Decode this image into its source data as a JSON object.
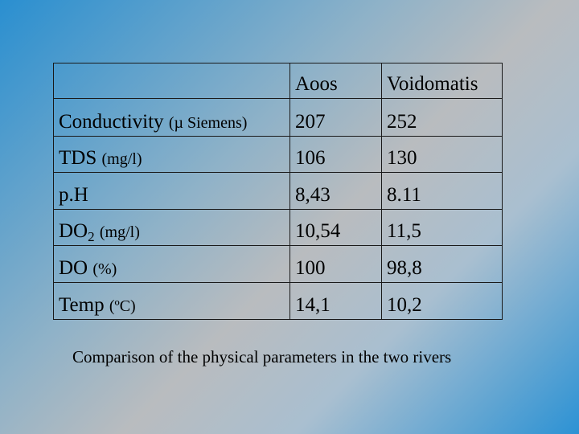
{
  "table": {
    "headers": [
      "",
      "Aoos",
      "Voidomatis"
    ],
    "rows": [
      {
        "name": "Conductivity",
        "sub": "",
        "unit": "(µ Siemens)",
        "aoos": "207",
        "voidomatis": "252"
      },
      {
        "name": "TDS",
        "sub": "",
        "unit": "(mg/l)",
        "aoos": "106",
        "voidomatis": "130"
      },
      {
        "name": "p.H",
        "sub": "",
        "unit": "",
        "aoos": "8,43",
        "voidomatis": "8.11"
      },
      {
        "name": "DO",
        "sub": "2",
        "unit": "(mg/l)",
        "aoos": "10,54",
        "voidomatis": "11,5"
      },
      {
        "name": "DO",
        "sub": "",
        "unit": "(%)",
        "aoos": "100",
        "voidomatis": "98,8"
      },
      {
        "name": "Temp",
        "sub": "",
        "unit": "(ºC)",
        "aoos": "14,1",
        "voidomatis": "10,2"
      }
    ]
  },
  "caption": "Comparison of the physical parameters in the two rivers"
}
